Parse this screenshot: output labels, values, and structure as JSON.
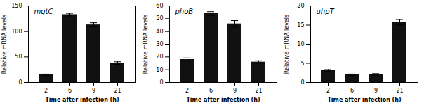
{
  "chart_data": [
    {
      "type": "bar",
      "title": "mgtC",
      "xlabel": "Time after infection (h)",
      "ylabel": "Relative mRNA levels",
      "categories": [
        "2",
        "6",
        "9",
        "21"
      ],
      "values": [
        15,
        133,
        113,
        38
      ],
      "errors": [
        1.5,
        2.5,
        4.0,
        2.5
      ],
      "color": "#111111",
      "ylim": [
        0,
        150
      ],
      "yticks": [
        0,
        50,
        100,
        150
      ]
    },
    {
      "type": "bar",
      "title": "phoB",
      "xlabel": "Time after infection (h)",
      "ylabel": "Relative mRNA levels",
      "categories": [
        "2",
        "6",
        "9",
        "21"
      ],
      "values": [
        18,
        54,
        46,
        16
      ],
      "errors": [
        1.2,
        1.5,
        2.5,
        1.0
      ],
      "color": "#111111",
      "ylim": [
        0,
        60
      ],
      "yticks": [
        0,
        10,
        20,
        30,
        40,
        50,
        60
      ]
    },
    {
      "type": "bar",
      "title": "uhpT",
      "xlabel": "Time after infection (h)",
      "ylabel": "Relative mRNA levels",
      "categories": [
        "2",
        "6",
        "9",
        "21"
      ],
      "values": [
        3.1,
        2.0,
        2.1,
        15.8
      ],
      "errors": [
        0.25,
        0.2,
        0.2,
        0.65
      ],
      "color": "#111111",
      "ylim": [
        0,
        20
      ],
      "yticks": [
        0,
        5,
        10,
        15,
        20
      ]
    }
  ]
}
